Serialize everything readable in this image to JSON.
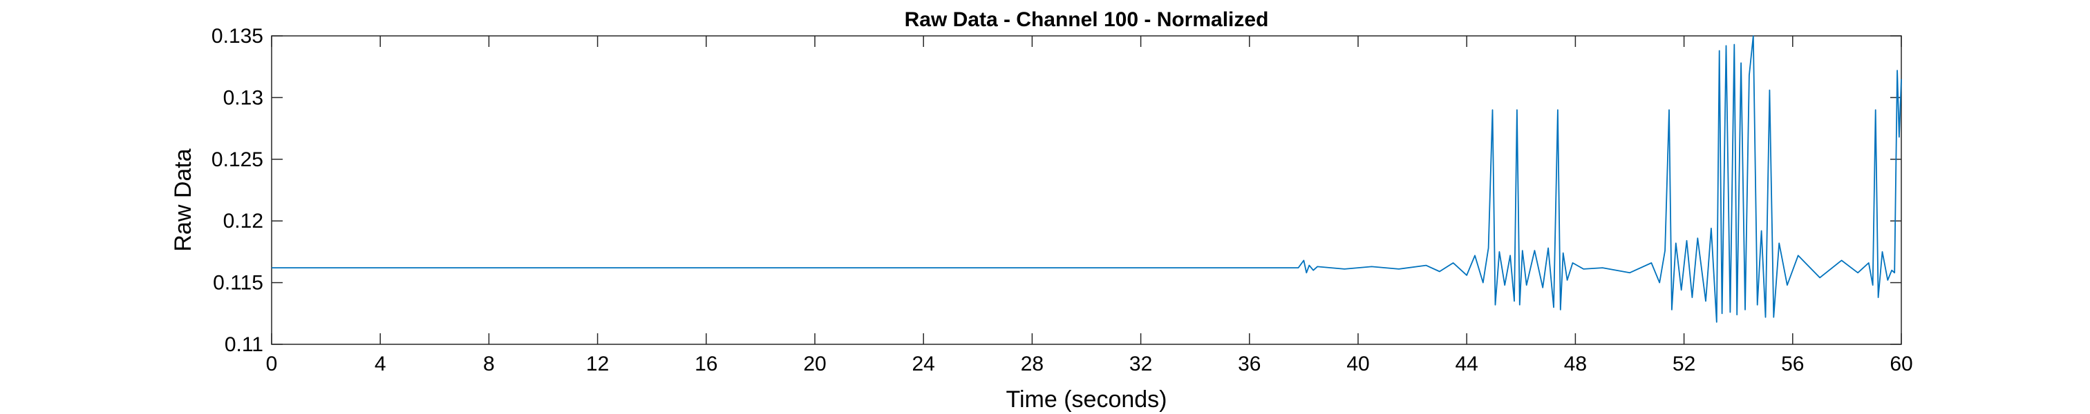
{
  "chart_data": {
    "type": "line",
    "title": "Raw Data - Channel 100 - Normalized",
    "xlabel": "Time (seconds)",
    "ylabel": "Raw Data",
    "xlim": [
      0,
      60
    ],
    "ylim": [
      0.11,
      0.135
    ],
    "xticks": [
      0,
      4,
      8,
      12,
      16,
      20,
      24,
      28,
      32,
      36,
      40,
      44,
      48,
      52,
      56,
      60
    ],
    "xtick_labels": [
      "0",
      "4",
      "8",
      "12",
      "16",
      "20",
      "24",
      "28",
      "32",
      "36",
      "40",
      "44",
      "48",
      "52",
      "56",
      "60"
    ],
    "yticks": [
      0.11,
      0.115,
      0.12,
      0.125,
      0.13,
      0.135
    ],
    "ytick_labels": [
      "0.11",
      "0.115",
      "0.12",
      "0.125",
      "0.13",
      "0.135"
    ],
    "grid": false,
    "line_color": "#0072BD",
    "baseline": 0.1162,
    "series": [
      {
        "x": [
          0,
          37.8,
          38.0,
          38.1,
          38.2,
          38.35,
          38.5,
          39.5,
          40.5,
          41.5,
          42.5,
          43.0,
          43.5,
          44.0,
          44.3,
          44.6,
          44.8,
          44.95,
          45.05,
          45.2,
          45.4,
          45.6,
          45.75,
          45.85,
          45.95,
          46.05,
          46.2,
          46.5,
          46.8,
          47.0,
          47.2,
          47.35,
          47.45,
          47.55,
          47.7,
          47.9,
          48.3,
          49.0,
          50.0,
          50.8,
          51.1,
          51.3,
          51.45,
          51.55,
          51.7,
          51.9,
          52.1,
          52.3,
          52.5,
          52.8,
          53.0,
          53.2,
          53.3,
          53.4,
          53.55,
          53.7,
          53.85,
          53.95,
          54.1,
          54.25,
          54.4,
          54.55,
          54.7,
          54.85,
          55.0,
          55.15,
          55.3,
          55.5,
          55.8,
          56.2,
          57.0,
          57.8,
          58.4,
          58.8,
          58.95,
          59.05,
          59.15,
          59.3,
          59.5,
          59.65,
          59.75,
          59.85,
          59.92,
          60.0
        ],
        "y": [
          0.1162,
          0.1162,
          0.1168,
          0.1158,
          0.1164,
          0.116,
          0.1163,
          0.1161,
          0.1163,
          0.1161,
          0.1164,
          0.1159,
          0.1166,
          0.1156,
          0.1172,
          0.115,
          0.1178,
          0.129,
          0.1132,
          0.1175,
          0.1148,
          0.1172,
          0.1135,
          0.129,
          0.1132,
          0.1176,
          0.1148,
          0.1176,
          0.1146,
          0.1178,
          0.113,
          0.129,
          0.1128,
          0.1174,
          0.1152,
          0.1166,
          0.1161,
          0.1162,
          0.1158,
          0.1166,
          0.115,
          0.1176,
          0.129,
          0.1128,
          0.1182,
          0.1144,
          0.1184,
          0.1138,
          0.1186,
          0.1135,
          0.1194,
          0.1118,
          0.1338,
          0.1125,
          0.1342,
          0.1126,
          0.1343,
          0.1124,
          0.1328,
          0.1128,
          0.1318,
          0.135,
          0.1132,
          0.1192,
          0.1122,
          0.1306,
          0.1122,
          0.1182,
          0.1148,
          0.1172,
          0.1154,
          0.1168,
          0.1158,
          0.1166,
          0.1148,
          0.129,
          0.1138,
          0.1175,
          0.1152,
          0.116,
          0.1158,
          0.1322,
          0.1268,
          0.1315
        ]
      }
    ]
  }
}
